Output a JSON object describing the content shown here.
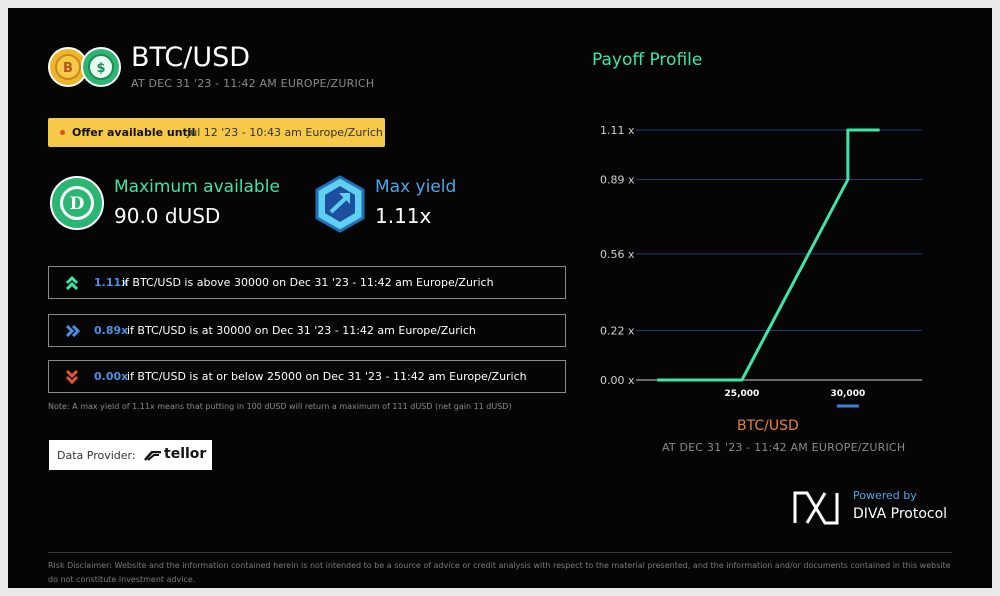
{
  "header": {
    "title": "BTC/USD",
    "subtitle": "AT DEC 31 '23 - 11:42 AM EUROPE/ZURICH"
  },
  "offer": {
    "label": "Offer available until",
    "value": "Jul 12 '23 - 10:43 am Europe/Zurich"
  },
  "stats": {
    "max_available_label": "Maximum available",
    "max_available_value": "90.0 dUSD",
    "max_yield_label": "Max yield",
    "max_yield_value": "1.11x"
  },
  "conditions": [
    {
      "icon": "chevrons-up-icon",
      "multiplier": "1.11x",
      "text": "if BTC/USD is above 30000 on Dec 31 '23 - 11:42 am Europe/Zurich"
    },
    {
      "icon": "chevrons-right-icon",
      "multiplier": "0.89x",
      "text": "if BTC/USD is at 30000 on Dec 31 '23 - 11:42 am Europe/Zurich"
    },
    {
      "icon": "chevrons-down-icon",
      "multiplier": "0.00x",
      "text": "if BTC/USD is at or below 25000 on Dec 31 '23 - 11:42 am Europe/Zurich"
    }
  ],
  "note": "Note: A max yield of 1.11x means that putting in 100 dUSD will return a maximum of 111 dUSD (net gain 11 dUSD)",
  "provider": {
    "label": "Data Provider:",
    "name": "tellor"
  },
  "chart_data": {
    "type": "line",
    "title": "Payoff Profile",
    "xlabel": "BTC/USD",
    "xlabel_sub": "AT DEC 31 '23 - 11:42 AM EUROPE/ZURICH",
    "y_ticks": [
      "1.11 x",
      "0.89 x",
      "0.56 x",
      "0.22 x",
      "0.00 x"
    ],
    "y_tick_values": [
      1.11,
      0.89,
      0.56,
      0.22,
      0.0
    ],
    "x_ticks": [
      "25,000",
      "30,000"
    ],
    "x_tick_values": [
      25000,
      30000
    ],
    "series": [
      {
        "x": [
          21000,
          25000,
          30000,
          30000,
          31500
        ],
        "y": [
          0.0,
          0.0,
          0.89,
          1.11,
          1.11
        ]
      }
    ],
    "xlim": [
      20000,
      33500
    ],
    "ylim": [
      0,
      1.11
    ],
    "grid": true,
    "colors": {
      "line": "#3be6a7",
      "grid": "#283a6e",
      "highlight": "#3d7fd6"
    }
  },
  "branding": {
    "powered_by": "Powered by",
    "name": "DIVA Protocol"
  },
  "disclaimer": "Risk Disclaimer: Website and the information contained herein is not intended to be a source of advice or credit analysis with respect to the material presented, and the information and/or documents contained in this website do not constitute investment advice."
}
